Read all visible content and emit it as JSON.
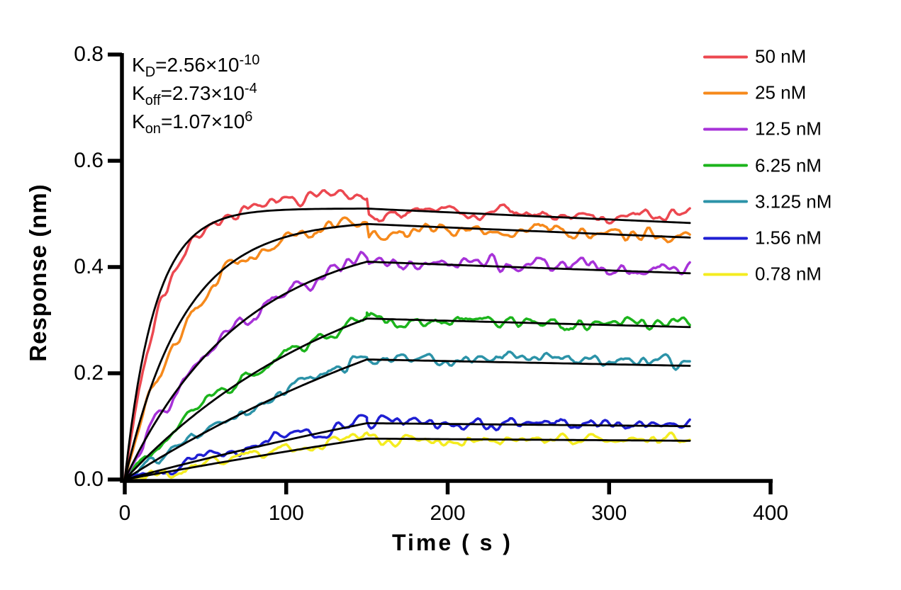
{
  "figure": {
    "background": "#FFFFFF",
    "text_color": "#000000"
  },
  "annotations": {
    "kd": {
      "base": "K",
      "sub": "D",
      "value": "=2.56×10",
      "exp": "-10"
    },
    "koff": {
      "base": "K",
      "sub": "off",
      "value": "=2.73×10",
      "exp": "-4"
    },
    "kon": {
      "base": "K",
      "sub": "on",
      "value": "=1.07×10",
      "exp": "6"
    }
  },
  "chart_data": {
    "type": "line",
    "title": "",
    "xlabel": "Time ( s )",
    "ylabel": "Response (nm)",
    "xlim": [
      0,
      400
    ],
    "ylim": [
      0,
      0.8
    ],
    "xtick_labels": [
      "0",
      "100",
      "200",
      "300",
      "400"
    ],
    "xtick_values": [
      0,
      100,
      200,
      300,
      400
    ],
    "ytick_labels": [
      "0.0",
      "0.2",
      "0.4",
      "0.6",
      "0.8"
    ],
    "ytick_values": [
      0,
      0.2,
      0.4,
      0.6,
      0.8
    ],
    "grid": false,
    "legend_position": "right-outside",
    "axis_color": "#000000",
    "fit_color": "#000000",
    "phases": {
      "association_start_s": 0,
      "association_end_s": 150,
      "dissociation_end_s": 350
    },
    "kinetics_fit": {
      "kd_M": 2.56e-10,
      "koff_per_s": 0.000273,
      "kon_per_M_s": 1070000
    },
    "series": [
      {
        "label": "50 nM",
        "concentration_nM": 50,
        "color": "#EC4850",
        "response_at_150s": 0.532,
        "response_at_350s": 0.493,
        "fit_peak": 0.51,
        "fit_end": 0.483,
        "kobs_fit": 0.0538,
        "kobs_data": 0.042,
        "diss_step": -0.009,
        "late_bias": 0.01,
        "noise": 0.0055,
        "seed": 11
      },
      {
        "label": "25 nM",
        "concentration_nM": 25,
        "color": "#F6891B",
        "response_at_150s": 0.488,
        "response_at_350s": 0.458,
        "fit_peak": 0.481,
        "fit_end": 0.455,
        "kobs_fit": 0.0271,
        "kobs_data": 0.0235,
        "diss_step": -0.019,
        "late_bias": 0.007,
        "noise": 0.006,
        "seed": 22
      },
      {
        "label": "12.5 nM",
        "concentration_nM": 12.5,
        "color": "#A732D8",
        "response_at_150s": 0.417,
        "response_at_350s": 0.395,
        "fit_peak": 0.41,
        "fit_end": 0.388,
        "kobs_fit": 0.0137,
        "kobs_data": 0.0127,
        "diss_step": -0.006,
        "late_bias": 0.008,
        "noise": 0.0062,
        "seed": 33
      },
      {
        "label": "6.25 nM",
        "concentration_nM": 6.25,
        "color": "#1CB41C",
        "response_at_150s": 0.308,
        "response_at_350s": 0.291,
        "fit_peak": 0.303,
        "fit_end": 0.287,
        "kobs_fit": 0.007,
        "kobs_data": 0.0068,
        "diss_step": -0.004,
        "late_bias": 0.004,
        "noise": 0.0052,
        "seed": 44
      },
      {
        "label": "3.125 nM",
        "concentration_nM": 3.125,
        "color": "#2C93A8",
        "response_at_150s": 0.229,
        "response_at_350s": 0.221,
        "fit_peak": 0.226,
        "fit_end": 0.214,
        "kobs_fit": 0.00361,
        "kobs_data": 0.00356,
        "diss_step": 0.002,
        "late_bias": 0.007,
        "noise": 0.005,
        "seed": 55
      },
      {
        "label": "1.56 nM",
        "concentration_nM": 1.56,
        "color": "#1F1FD3",
        "response_at_150s": 0.114,
        "response_at_350s": 0.104,
        "fit_peak": 0.106,
        "fit_end": 0.1,
        "kobs_fit": 0.00194,
        "kobs_data": 0.0019,
        "diss_step": 0.003,
        "late_bias": 0.003,
        "noise": 0.005,
        "seed": 66
      },
      {
        "label": "0.78 nM",
        "concentration_nM": 0.78,
        "color": "#F4EC20",
        "response_at_150s": 0.079,
        "response_at_350s": 0.072,
        "fit_peak": 0.077,
        "fit_end": 0.073,
        "kobs_fit": 0.0011,
        "kobs_data": 0.0011,
        "diss_step": -0.001,
        "late_bias": 0.001,
        "noise": 0.0045,
        "seed": 77
      }
    ]
  }
}
